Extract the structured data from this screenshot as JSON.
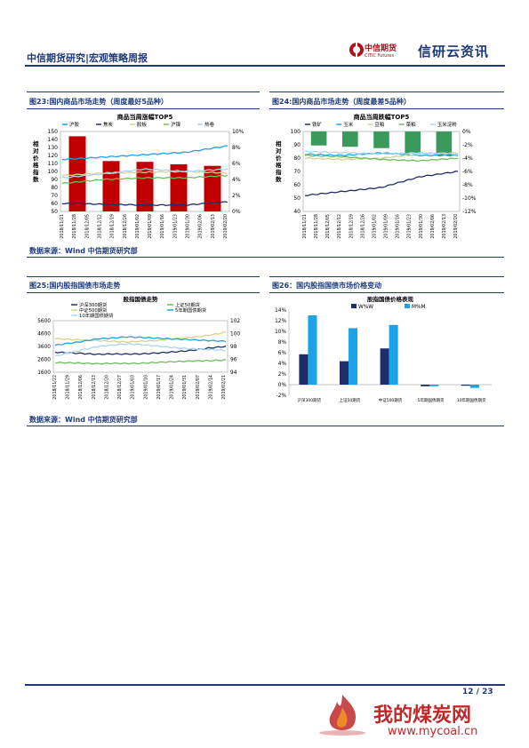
{
  "header": {
    "title": "中信期货研究|宏观策略周报",
    "logo_cn": "中信期货",
    "logo_en": "CITIC Futures",
    "brand": "信研云资讯"
  },
  "figures": {
    "f23": {
      "title": "图23:国内商品市场走势（周度最好5品种）",
      "source": "数据来源：Wind 中信期货研究部"
    },
    "f24": {
      "title": "图24:国内商品市场走势（周度最差5品种）"
    },
    "f25": {
      "title": "图25:国内股指国债市场走势",
      "source": "数据来源：Wind 中信期货研究部"
    },
    "f26": {
      "title": "图26：国内股指国债市场价格变动"
    }
  },
  "footer": {
    "page": "12 / 23",
    "watermark_cn": "我的煤炭网",
    "watermark_url": "www.mycoal.cn"
  },
  "colors": {
    "navy": "#1f3a7a",
    "red_bar": "#c00000",
    "green_bar": "#3a9a5b",
    "dark_bar": "#1f2d6b",
    "light_bar": "#1aa3e8"
  },
  "chart_data": [
    {
      "id": "f23",
      "type": "bar",
      "title": "商品当周涨幅TOP5",
      "categories": [
        "沪胶",
        "焦炭",
        "胶板",
        "沪镍",
        "热卷"
      ],
      "series": [
        {
          "name": "沪胶",
          "type": "line",
          "color": "#1aa3e8",
          "values": [
            115,
            118,
            121,
            124,
            132
          ]
        },
        {
          "name": "焦炭",
          "type": "line",
          "color": "#1f2d6b",
          "values": [
            60,
            59,
            58,
            58,
            62
          ]
        },
        {
          "name": "胶板",
          "type": "line",
          "color": "#d4d28c",
          "values": [
            95,
            98,
            99,
            100,
            98
          ]
        },
        {
          "name": "沪镍",
          "type": "line",
          "color": "#6abf5a",
          "values": [
            85,
            90,
            92,
            92,
            95
          ]
        },
        {
          "name": "热卷",
          "type": "line",
          "color": "#aad4ee",
          "values": [
            92,
            97,
            103,
            100,
            103
          ]
        }
      ],
      "bars": [
        9.4,
        6.3,
        6.2,
        5.9,
        5.7
      ],
      "x_ticks": [
        "2018/11/21",
        "2018/11/28",
        "2018/12/05",
        "2018/12/12",
        "2018/12/19",
        "2018/12/26",
        "2019/01/02",
        "2019/01/09",
        "2019/01/16",
        "2019/01/23",
        "2019/01/30",
        "2019/02/06",
        "2019/02/13",
        "2019/02/20"
      ],
      "y_left": {
        "label": "相对价格指数",
        "ticks": [
          "150",
          "140",
          "130",
          "120",
          "110",
          "100",
          "90",
          "80",
          "70",
          "60",
          "50"
        ],
        "min": 50,
        "max": 150
      },
      "y_right": {
        "ticks": [
          "10%",
          "8%",
          "6%",
          "4%",
          "2%",
          "0%"
        ],
        "min": 0,
        "max": 10
      },
      "legend_position": "top"
    },
    {
      "id": "f24",
      "type": "bar",
      "title": "商品当周跌幅TOP5",
      "categories": [
        "铁矿",
        "玉米",
        "豆粕",
        "菜粕",
        "玉米淀粉"
      ],
      "series": [
        {
          "name": "铁矿",
          "type": "line",
          "color": "#1f2d6b",
          "values": [
            52,
            55,
            58,
            66,
            70
          ]
        },
        {
          "name": "玉米",
          "type": "line",
          "color": "#1aa3e8",
          "values": [
            83,
            82,
            84,
            82,
            82
          ]
        },
        {
          "name": "豆粕",
          "type": "line",
          "color": "#d4d28c",
          "values": [
            80,
            79,
            80,
            83,
            84
          ]
        },
        {
          "name": "菜粕",
          "type": "line",
          "color": "#6abf5a",
          "values": [
            82,
            81,
            79,
            78,
            80
          ]
        },
        {
          "name": "玉米淀粉",
          "type": "line",
          "color": "#aad4ee",
          "values": [
            85,
            84,
            83,
            84,
            83
          ]
        }
      ],
      "bars": [
        -2.1,
        -2.3,
        -2.5,
        -3.3,
        -3.6
      ],
      "x_ticks": [
        "2018/11/21",
        "2018/11/28",
        "2018/12/05",
        "2018/12/12",
        "2018/12/19",
        "2018/12/26",
        "2019/01/02",
        "2019/01/09",
        "2019/01/16",
        "2019/01/23",
        "2019/01/30",
        "2019/02/06",
        "2019/02/13",
        "2019/02/20"
      ],
      "y_left": {
        "label": "相对价格指数",
        "ticks": [
          "100",
          "90",
          "80",
          "70",
          "60",
          "50",
          "40"
        ],
        "min": 40,
        "max": 100
      },
      "y_right": {
        "ticks": [
          "0%",
          "-2%",
          "-4%",
          "-6%",
          "-8%",
          "-10%",
          "-12%"
        ],
        "min": -12,
        "max": 0
      },
      "legend_position": "top"
    },
    {
      "id": "f25",
      "type": "line",
      "title": "股指国债走势",
      "series": [
        {
          "name": "沪深300期货",
          "axis": "left",
          "color": "#1f2d6b",
          "values": [
            3150,
            3100,
            3050,
            2990,
            3020,
            3010,
            3020,
            3080,
            3150,
            3230,
            3350,
            3500,
            3600
          ]
        },
        {
          "name": "上证50期货",
          "axis": "left",
          "color": "#6abf5a",
          "values": [
            2350,
            2330,
            2300,
            2260,
            2290,
            2280,
            2290,
            2350,
            2400,
            2450,
            2480,
            2500,
            2550
          ]
        },
        {
          "name": "中证500期货",
          "axis": "left",
          "color": "#d4d28c",
          "values": [
            4200,
            4150,
            4100,
            4050,
            4000,
            3950,
            4000,
            4050,
            4150,
            4250,
            4350,
            4500,
            4700
          ]
        },
        {
          "name": "5年期国债期货",
          "axis": "right",
          "color": "#1aa3e8",
          "values": [
            98.2,
            98.5,
            98.8,
            99.2,
            99.3,
            99.5,
            99.4,
            99.3,
            99.2,
            99.1,
            99.0,
            98.9,
            98.8
          ]
        },
        {
          "name": "10年期国债期货",
          "axis": "right",
          "color": "#aad4ee",
          "values": [
            96.5,
            97.0,
            97.5,
            98.0,
            98.2,
            98.4,
            98.3,
            98.1,
            97.9,
            97.7,
            97.6,
            97.5,
            97.4
          ]
        }
      ],
      "x_ticks": [
        "2018/11/22",
        "2018/11/29",
        "2018/12/06",
        "2018/12/13",
        "2018/12/20",
        "2018/12/27",
        "2019/01/03",
        "2019/01/10",
        "2019/01/17",
        "2019/01/24",
        "2019/01/31",
        "2019/02/07",
        "2019/02/14",
        "2019/02/21"
      ],
      "y_left": {
        "ticks": [
          "5600",
          "4600",
          "3600",
          "2600",
          "1600"
        ],
        "min": 1600,
        "max": 5600
      },
      "y_right": {
        "ticks": [
          "102",
          "100",
          "98",
          "96",
          "94"
        ],
        "min": 94,
        "max": 102
      },
      "legend_position": "top"
    },
    {
      "id": "f26",
      "type": "bar",
      "title": "股指国债价格表现",
      "categories": [
        "沪深300期货",
        "上证50期货",
        "中证500期货",
        "5年期国债期货",
        "10年期国债期货"
      ],
      "series": [
        {
          "name": "W%W",
          "color": "#1f2d6b",
          "values": [
            5.7,
            4.4,
            6.8,
            -0.3,
            -0.2
          ]
        },
        {
          "name": "M%M",
          "color": "#1aa3e8",
          "values": [
            13.0,
            10.6,
            11.2,
            -0.3,
            -0.6
          ]
        }
      ],
      "y_ticks": [
        "14%",
        "12%",
        "10%",
        "8%",
        "6%",
        "4%",
        "2%",
        "0%",
        "-2%"
      ],
      "ylim": [
        -2,
        14
      ],
      "legend_position": "top"
    }
  ]
}
